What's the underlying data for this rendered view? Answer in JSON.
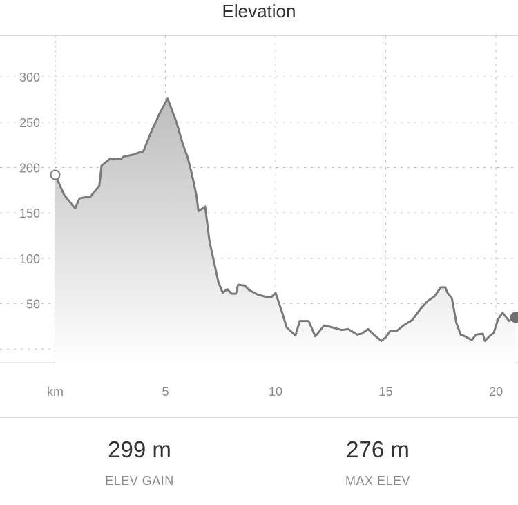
{
  "header": {
    "title": "Elevation"
  },
  "chart_data": {
    "type": "area",
    "title": "Elevation",
    "xlabel": "km",
    "ylabel": "",
    "xlim": [
      0,
      21.0
    ],
    "ylim": [
      -15,
      345
    ],
    "x_ticks": [
      5,
      10,
      15,
      20
    ],
    "y_ticks": [
      50,
      100,
      150,
      200,
      250,
      300
    ],
    "grid": true,
    "x": [
      0,
      0.4,
      0.8,
      0.9,
      1.1,
      1.5,
      1.6,
      2.0,
      2.1,
      2.5,
      2.6,
      3.0,
      3.1,
      3.5,
      3.6,
      4.0,
      4.4,
      4.6,
      4.7,
      5.1,
      5.5,
      5.8,
      6.0,
      6.2,
      6.4,
      6.5,
      6.8,
      7.0,
      7.4,
      7.6,
      7.8,
      8.0,
      8.2,
      8.3,
      8.6,
      8.8,
      9.2,
      9.5,
      9.8,
      10.0,
      10.3,
      10.5,
      10.9,
      11.1,
      11.5,
      11.8,
      12.2,
      12.4,
      12.7,
      13.0,
      13.3,
      13.7,
      13.9,
      14.2,
      14.5,
      14.8,
      15.0,
      15.2,
      15.5,
      15.8,
      16.2,
      16.6,
      16.9,
      17.2,
      17.5,
      17.7,
      17.8,
      18.0,
      18.2,
      18.4,
      18.6,
      18.9,
      19.1,
      19.4,
      19.5,
      19.7,
      19.9,
      20.1,
      20.3,
      20.6,
      20.9
    ],
    "values": [
      192,
      170,
      158,
      155,
      166,
      168,
      168,
      180,
      202,
      210,
      209,
      210,
      212,
      214,
      215,
      218,
      242,
      252,
      258,
      276,
      250,
      225,
      212,
      193,
      170,
      152,
      157,
      119,
      74,
      62,
      66,
      61,
      61,
      71,
      70,
      65,
      60,
      58,
      57,
      62,
      40,
      24,
      15,
      31,
      31,
      14,
      26,
      25,
      23,
      21,
      22,
      16,
      17,
      22,
      15,
      9,
      13,
      20,
      20,
      26,
      32,
      45,
      53,
      58,
      68,
      68,
      62,
      56,
      29,
      16,
      14,
      10,
      16,
      17,
      9,
      14,
      18,
      33,
      40,
      31,
      35
    ],
    "start_point": {
      "x": 0,
      "y": 192
    },
    "end_point": {
      "x": 20.9,
      "y": 35
    }
  },
  "stats": {
    "elev_gain": {
      "value": "299 m",
      "label": "ELEV GAIN"
    },
    "max_elev": {
      "value": "276 m",
      "label": "MAX ELEV"
    }
  },
  "colors": {
    "line": "#7a7a7a",
    "fill_top": "#bdbdbd",
    "fill_bottom": "#ffffff",
    "grid": "#bbbbbb",
    "tick_label": "#8a8a8a",
    "marker_end": "#6f6f6f"
  }
}
